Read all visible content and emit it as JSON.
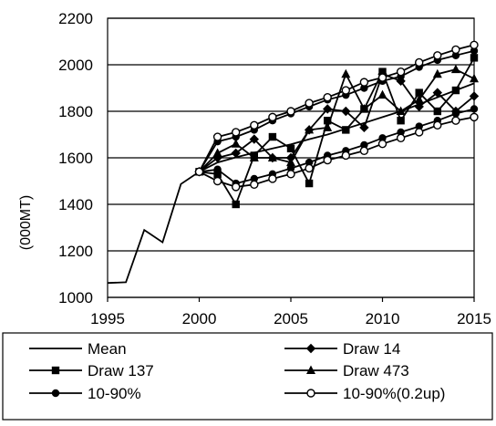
{
  "chart_data": {
    "type": "line",
    "title": "",
    "xlabel": "",
    "ylabel": "(000MT)",
    "xlim": [
      1995,
      2015
    ],
    "ylim": [
      1000,
      2200
    ],
    "x_ticks": [
      1995,
      2000,
      2005,
      2010,
      2015
    ],
    "y_ticks": [
      1000,
      1200,
      1400,
      1600,
      1800,
      2000,
      2200
    ],
    "grid": "horizontal",
    "legend_position": "bottom",
    "series": [
      {
        "name": "Mean",
        "marker": "none",
        "color": "#000000",
        "x": [
          1994,
          1995,
          1996,
          1997,
          1998,
          1999,
          2000,
          2001,
          2002,
          2003,
          2004,
          2005,
          2006,
          2007,
          2008,
          2009,
          2010,
          2011,
          2012,
          2013,
          2014,
          2015
        ],
        "y": [
          1062,
          1062,
          1065,
          1290,
          1237,
          1487,
          1540,
          1580,
          1602,
          1622,
          1640,
          1658,
          1680,
          1700,
          1725,
          1750,
          1775,
          1800,
          1830,
          1860,
          1890,
          1920
        ]
      },
      {
        "name": "Draw 14",
        "marker": "diamond-filled",
        "color": "#000000",
        "x": [
          2000,
          2001,
          2002,
          2003,
          2004,
          2005,
          2006,
          2007,
          2008,
          2009,
          2010,
          2011,
          2012,
          2013,
          2014,
          2015
        ],
        "y": [
          1540,
          1600,
          1620,
          1680,
          1600,
          1600,
          1720,
          1810,
          1800,
          1730,
          1960,
          1930,
          1820,
          1880,
          1800,
          1865
        ]
      },
      {
        "name": "Draw 137",
        "marker": "square-filled",
        "color": "#000000",
        "x": [
          2000,
          2001,
          2002,
          2003,
          2004,
          2005,
          2006,
          2007,
          2008,
          2009,
          2010,
          2011,
          2012,
          2013,
          2014,
          2015
        ],
        "y": [
          1540,
          1530,
          1400,
          1610,
          1690,
          1640,
          1490,
          1760,
          1720,
          1810,
          1970,
          1760,
          1880,
          1800,
          1890,
          2030
        ]
      },
      {
        "name": "Draw 473",
        "marker": "triangle-filled",
        "color": "#000000",
        "x": [
          2000,
          2001,
          2002,
          2003,
          2004,
          2005,
          2006,
          2007,
          2008,
          2009,
          2010,
          2011,
          2012,
          2013,
          2014,
          2015
        ],
        "y": [
          1540,
          1620,
          1660,
          1600,
          1600,
          1580,
          1720,
          1730,
          1960,
          1810,
          1870,
          1800,
          1850,
          1960,
          1980,
          1940
        ]
      },
      {
        "name": "10-90%",
        "marker": "circle-filled",
        "color": "#000000",
        "x": [
          2000,
          2001,
          2002,
          2003,
          2004,
          2005,
          2006,
          2007,
          2008,
          2009,
          2010,
          2011,
          2012,
          2013,
          2014,
          2015
        ],
        "y": [
          1540,
          1550,
          1490,
          1510,
          1530,
          1555,
          1580,
          1610,
          1630,
          1655,
          1685,
          1710,
          1735,
          1760,
          1790,
          1810
        ]
      },
      {
        "name": "10-90%",
        "marker": "circle-filled",
        "color": "#000000",
        "x": [
          2000,
          2001,
          2002,
          2003,
          2004,
          2005,
          2006,
          2007,
          2008,
          2009,
          2010,
          2011,
          2012,
          2013,
          2014,
          2015
        ],
        "y": [
          1540,
          1670,
          1690,
          1720,
          1760,
          1790,
          1820,
          1850,
          1870,
          1900,
          1930,
          1950,
          1990,
          2020,
          2040,
          2060
        ]
      },
      {
        "name": "10-90%(0.2up)",
        "marker": "circle-open",
        "color": "#000000",
        "x": [
          2000,
          2001,
          2002,
          2003,
          2004,
          2005,
          2006,
          2007,
          2008,
          2009,
          2010,
          2011,
          2012,
          2013,
          2014,
          2015
        ],
        "y": [
          1540,
          1500,
          1475,
          1485,
          1510,
          1530,
          1555,
          1590,
          1610,
          1630,
          1660,
          1685,
          1710,
          1740,
          1760,
          1775
        ]
      },
      {
        "name": "10-90%(0.2up)",
        "marker": "circle-open",
        "color": "#000000",
        "x": [
          2000,
          2001,
          2002,
          2003,
          2004,
          2005,
          2006,
          2007,
          2008,
          2009,
          2010,
          2011,
          2012,
          2013,
          2014,
          2015
        ],
        "y": [
          1540,
          1690,
          1710,
          1740,
          1775,
          1800,
          1835,
          1860,
          1890,
          1925,
          1945,
          1970,
          2010,
          2040,
          2065,
          2085
        ]
      }
    ],
    "legend": [
      {
        "label": "Mean",
        "marker": "none"
      },
      {
        "label": "Draw 14",
        "marker": "diamond-filled"
      },
      {
        "label": "Draw 137",
        "marker": "square-filled"
      },
      {
        "label": "Draw 473",
        "marker": "triangle-filled"
      },
      {
        "label": "10-90%",
        "marker": "circle-filled"
      },
      {
        "label": "10-90%(0.2up)",
        "marker": "circle-open"
      }
    ]
  }
}
